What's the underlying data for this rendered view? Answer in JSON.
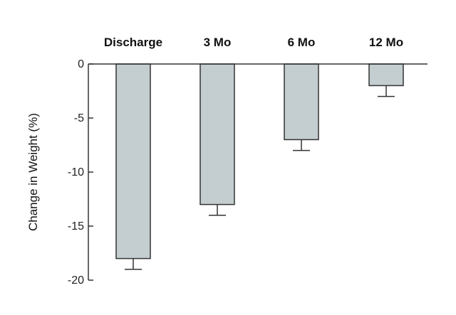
{
  "chart_data": {
    "type": "bar",
    "categories": [
      "Discharge",
      "3 Mo",
      "6 Mo",
      "12 Mo"
    ],
    "values": [
      -18,
      -13,
      -7,
      -2
    ],
    "error_low": [
      -19,
      -14,
      -8,
      -3
    ],
    "ylabel": "Change in Weight (%)",
    "xlabel": "",
    "ylim": [
      -20,
      0
    ],
    "yticks": [
      0,
      -5,
      -10,
      -15,
      -20
    ],
    "ytick_labels": [
      "0",
      "-5",
      "-10",
      "-15",
      "-20"
    ],
    "category_position": "top",
    "grid": false,
    "bar_color": "#c4cdd0",
    "bar_edge_color": "#333333"
  }
}
